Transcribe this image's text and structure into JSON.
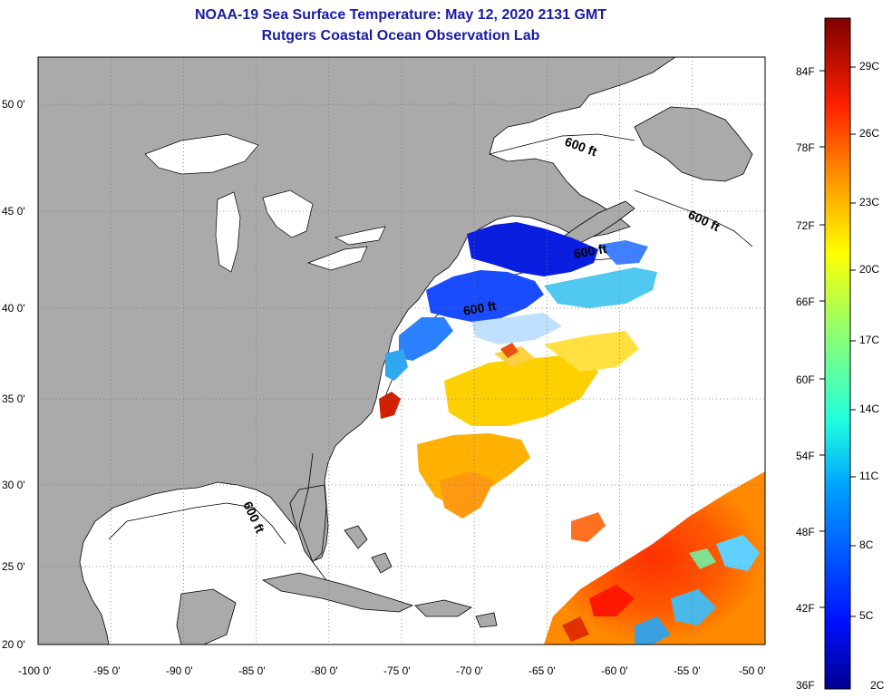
{
  "title": {
    "line1": "NOAA-19 Sea Surface Temperature:  May 12, 2020 2131 GMT",
    "line2": "Rutgers Coastal Ocean Observation Lab"
  },
  "axes": {
    "lat_labels": [
      "50 0'",
      "45 0'",
      "40 0'",
      "35 0'",
      "30 0'",
      "25 0'",
      "20 0'"
    ],
    "lon_labels": [
      "-100 0'",
      "-95 0'",
      "-90 0'",
      "-85 0'",
      "-80 0'",
      "-75 0'",
      "-70 0'",
      "-65 0'",
      "-60 0'",
      "-55 0'",
      "-50 0'"
    ]
  },
  "contour_labels": [
    "600 ft",
    "600 ft",
    "600 ft",
    "600 ft",
    "600 ft"
  ],
  "colorbar": {
    "fahrenheit": [
      "84F",
      "78F",
      "72F",
      "66F",
      "60F",
      "54F",
      "48F",
      "42F",
      "36F"
    ],
    "celsius": [
      "29C",
      "26C",
      "23C",
      "20C",
      "17C",
      "14C",
      "11C",
      "8C",
      "5C",
      "2C"
    ]
  },
  "colors": {
    "land": "#aaaaaa",
    "title": "#1a1aa6"
  }
}
